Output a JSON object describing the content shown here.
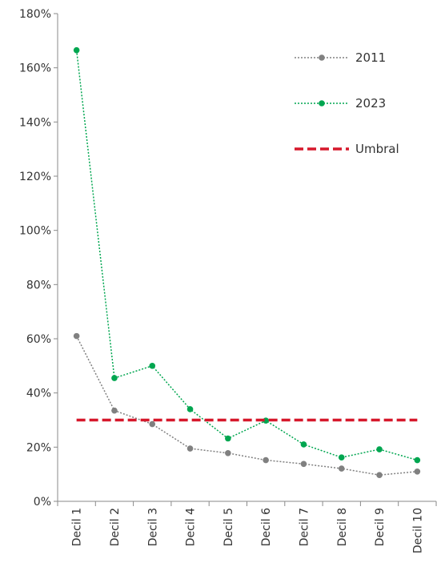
{
  "chart_data": {
    "type": "line",
    "categories": [
      "Decil 1",
      "Decil 2",
      "Decil 3",
      "Decil 4",
      "Decil 5",
      "Decil 6",
      "Decil 7",
      "Decil 8",
      "Decil 9",
      "Decil 10"
    ],
    "series": [
      {
        "name": "2011",
        "values": [
          61,
          33.5,
          28.5,
          19.5,
          17.8,
          15.2,
          13.8,
          12.1,
          9.7,
          11
        ],
        "color": "#808080",
        "style": "dotted"
      },
      {
        "name": "2023",
        "values": [
          166.5,
          45.5,
          50,
          34,
          23.2,
          29.8,
          21,
          16.2,
          19.2,
          15.2
        ],
        "color": "#00a650",
        "style": "dotted"
      },
      {
        "name": "Umbral",
        "values": [
          30,
          30,
          30,
          30,
          30,
          30,
          30,
          30,
          30,
          30
        ],
        "color": "#d6182b",
        "style": "dashed"
      }
    ],
    "yticks": [
      "0%",
      "20%",
      "40%",
      "60%",
      "80%",
      "100%",
      "120%",
      "140%",
      "160%",
      "180%"
    ],
    "ylim": [
      0,
      180
    ],
    "grid": false,
    "legend_position": "top-right"
  }
}
